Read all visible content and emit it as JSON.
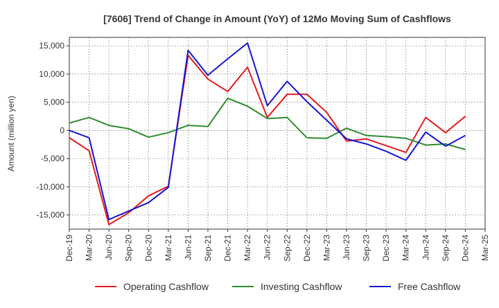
{
  "chart_data": {
    "type": "line",
    "title": "[7606]  Trend of Change in Amount (YoY) of 12Mo Moving Sum of Cashflows",
    "xlabel": "",
    "ylabel": "Amount (million yen)",
    "ylim": [
      -17500,
      16500
    ],
    "yticks": [
      15000,
      10000,
      5000,
      0,
      -5000,
      -10000,
      -15000
    ],
    "ytick_labels": [
      "15,000",
      "10,000",
      "5,000",
      "0",
      "-5,000",
      "-10,000",
      "-15,000"
    ],
    "grid": true,
    "legend_position": "bottom",
    "categories": [
      "Dec-19",
      "Mar-20",
      "Jun-20",
      "Sep-20",
      "Dec-20",
      "Mar-21",
      "Jun-21",
      "Sep-21",
      "Dec-21",
      "Mar-22",
      "Jun-22",
      "Sep-22",
      "Dec-22",
      "Mar-23",
      "Jun-23",
      "Sep-23",
      "Dec-23",
      "Mar-24",
      "Jun-24",
      "Sep-24",
      "Dec-24",
      "Mar-25"
    ],
    "series": [
      {
        "name": "Operating Cashflow",
        "color": "#e31a1c",
        "values": [
          -1300,
          -3600,
          -16700,
          -14600,
          -11600,
          -9900,
          13300,
          9100,
          6900,
          11200,
          2300,
          6400,
          6400,
          3200,
          -1900,
          -1500,
          -2700,
          -3900,
          2300,
          -400,
          2500,
          null
        ]
      },
      {
        "name": "Investing Cashflow",
        "color": "#2e8b2e",
        "values": [
          1300,
          2300,
          900,
          300,
          -1200,
          -400,
          900,
          700,
          5700,
          4300,
          2100,
          2300,
          -1300,
          -1400,
          400,
          -900,
          -1100,
          -1400,
          -2600,
          -2400,
          -3400,
          null
        ]
      },
      {
        "name": "Free Cashflow",
        "color": "#1414d2",
        "values": [
          0,
          -1300,
          -15800,
          -14300,
          -12800,
          -10100,
          14200,
          9800,
          12700,
          15500,
          4400,
          8700,
          5100,
          1800,
          -1500,
          -2400,
          -3700,
          -5300,
          -300,
          -2800,
          -900,
          null
        ]
      }
    ]
  }
}
